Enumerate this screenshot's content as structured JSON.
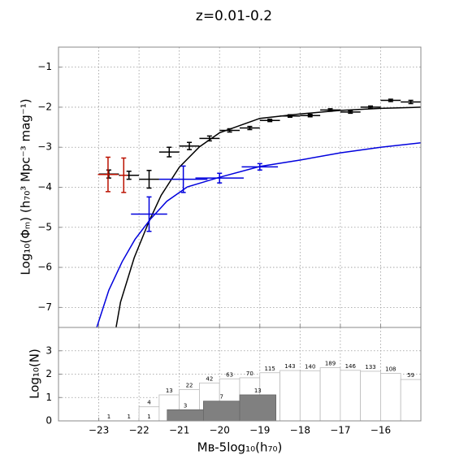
{
  "chart_data": [
    {
      "type": "errorbar",
      "title": "z=0.01-0.2",
      "y_label": "Log₁₀(Φₘ) (h₇₀³ Mpc⁻³ mag⁻¹)",
      "xlim": [
        -24,
        -15
      ],
      "ylim": [
        -7.5,
        -0.5
      ],
      "grid": true,
      "xticks": [
        -23,
        -22,
        -21,
        -20,
        -19,
        -18,
        -17,
        -16
      ],
      "yticks": [
        {
          "value": -7,
          "label": "−7"
        },
        {
          "value": -6,
          "label": "−6"
        },
        {
          "value": -5,
          "label": "−5"
        },
        {
          "value": -4,
          "label": "−4"
        },
        {
          "value": -3,
          "label": "−3"
        },
        {
          "value": -2,
          "label": "−2"
        },
        {
          "value": -1,
          "label": "−1"
        }
      ],
      "curves": [
        {
          "color": "#000000",
          "x": [
            -22.57,
            -22.46,
            -22.12,
            -21.76,
            -21.45,
            -21.0,
            -20.5,
            -20.0,
            -19.0,
            -18.0,
            -17.0,
            -16.0,
            -15.0
          ],
          "values": [
            -7.5,
            -6.87,
            -5.76,
            -4.87,
            -4.2,
            -3.5,
            -2.99,
            -2.64,
            -2.28,
            -2.17,
            -2.08,
            -2.03,
            -2.0
          ]
        },
        {
          "color": "#0000dd",
          "x": [
            -23.05,
            -22.75,
            -22.42,
            -22.1,
            -21.72,
            -21.31,
            -20.8,
            -20.0,
            -19.0,
            -18.0,
            -17.0,
            -16.0,
            -15.0
          ],
          "values": [
            -7.5,
            -6.57,
            -5.86,
            -5.3,
            -4.8,
            -4.35,
            -3.99,
            -3.75,
            -3.48,
            -3.32,
            -3.14,
            -3.0,
            -2.89
          ]
        }
      ],
      "series": [
        {
          "color": "#000000",
          "x": [
            -22.75,
            -22.25,
            -21.75,
            -21.25,
            -20.75,
            -20.25,
            -19.75,
            -19.25,
            -18.75,
            -18.25,
            -17.75,
            -17.25,
            -16.75,
            -16.25,
            -15.75,
            -15.25
          ],
          "xerr": [
            0.25,
            0.25,
            0.25,
            0.25,
            0.25,
            0.25,
            0.25,
            0.25,
            0.25,
            0.25,
            0.25,
            0.25,
            0.25,
            0.25,
            0.25,
            0.25
          ],
          "values": [
            -3.67,
            -3.7,
            -3.8,
            -3.12,
            -2.97,
            -2.78,
            -2.58,
            -2.52,
            -2.33,
            -2.22,
            -2.21,
            -2.07,
            -2.12,
            -2.0,
            -1.83,
            -1.87
          ],
          "yerr": [
            0.1,
            0.1,
            0.22,
            0.12,
            0.09,
            0.06,
            0.04,
            0.04,
            0.03,
            0.03,
            0.03,
            0.03,
            0.03,
            0.03,
            0.03,
            0.04
          ]
        },
        {
          "color": "#bb1100",
          "x": [
            -22.77,
            -22.38
          ],
          "xerr": [
            0.25,
            0.1
          ],
          "values": [
            -3.68,
            -3.7
          ],
          "yerr": [
            0.43,
            0.43
          ]
        },
        {
          "color": "#0000dd",
          "x": [
            -21.75,
            -20.9,
            -20.0,
            -19.0
          ],
          "xerr": [
            0.45,
            0.6,
            0.6,
            0.45
          ],
          "values": [
            -4.67,
            -3.8,
            -3.77,
            -3.49
          ],
          "yerr": [
            0.43,
            0.33,
            0.12,
            0.08
          ]
        }
      ]
    },
    {
      "type": "histogram",
      "x_label": "Mʙ-5log₁₀(h₇₀)",
      "y_label": "Log₁₀(N)",
      "xlim": [
        -24,
        -15
      ],
      "ylim": [
        0,
        4
      ],
      "grid": true,
      "y_scale": "log10",
      "xticks": [
        {
          "value": -23,
          "label": "−23"
        },
        {
          "value": -22,
          "label": "−22"
        },
        {
          "value": -21,
          "label": "−21"
        },
        {
          "value": -20,
          "label": "−20"
        },
        {
          "value": -19,
          "label": "−19"
        },
        {
          "value": -18,
          "label": "−18"
        },
        {
          "value": -17,
          "label": "−17"
        },
        {
          "value": -16,
          "label": "−16"
        }
      ],
      "yticks": [
        0,
        1,
        2,
        3
      ],
      "series": [
        {
          "color": "#ffffff",
          "bins": [
            -23,
            -22.5,
            -22,
            -21.5,
            -21,
            -20.5,
            -20,
            -19.5,
            -19,
            -18.5,
            -18,
            -17.5,
            -17,
            -16.5,
            -16,
            -15.5,
            -15
          ],
          "values": [
            1,
            1,
            4,
            13,
            22,
            42,
            63,
            70,
            115,
            143,
            140,
            189,
            146,
            133,
            108,
            59
          ]
        },
        {
          "color": "#808080",
          "bins": [
            -22.2,
            -21.3,
            -20.4,
            -19.5,
            -18.6
          ],
          "values": [
            1,
            3,
            7,
            13
          ]
        }
      ]
    }
  ]
}
